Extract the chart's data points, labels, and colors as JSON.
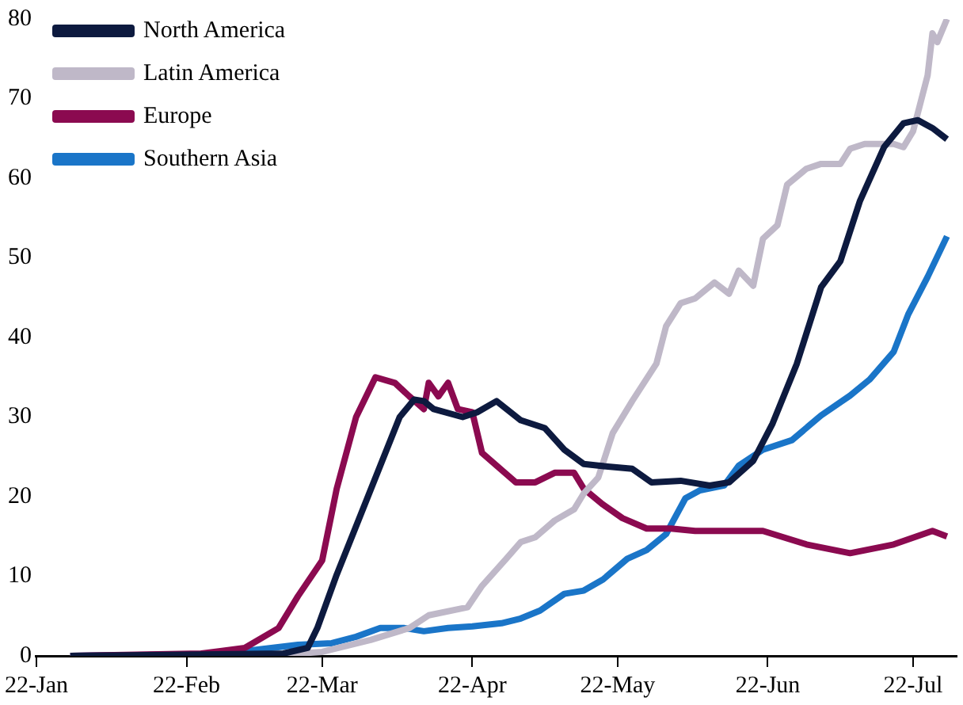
{
  "chart_data": {
    "type": "line",
    "legend": "top left",
    "grid": false,
    "marker": "none",
    "line_style": "solid",
    "xlim": [
      "--01-22",
      "--07-31"
    ],
    "xticks": [
      {
        "value": "--01-22",
        "label": "22-Jan"
      },
      {
        "value": "--02-22",
        "label": "22-Feb"
      },
      {
        "value": "--03-22",
        "label": "22-Mar"
      },
      {
        "value": "--04-22",
        "label": "22-Apr"
      },
      {
        "value": "--05-22",
        "label": "22-May"
      },
      {
        "value": "--06-22",
        "label": "22-Jun"
      },
      {
        "value": "--07-22",
        "label": "22-Jul"
      }
    ],
    "ylim": [
      0,
      80
    ],
    "yticks": [
      0,
      10,
      20,
      30,
      40,
      50,
      60,
      70,
      80
    ],
    "series": [
      {
        "name": "North America",
        "color": "#0d1a3f",
        "x": [
          "--01-29",
          "--03-14",
          "--03-19",
          "--03-21",
          "--03-25",
          "--03-30",
          "--04-03",
          "--04-07",
          "--04-10",
          "--04-12",
          "--04-14",
          "--04-20",
          "--04-23",
          "--04-27",
          "--05-02",
          "--05-07",
          "--05-11",
          "--05-15",
          "--05-18",
          "--05-25",
          "--05-29",
          "--06-04",
          "--06-10",
          "--06-14",
          "--06-19",
          "--06-23",
          "--06-28",
          "--07-03",
          "--07-07",
          "--07-11",
          "--07-16",
          "--07-20",
          "--07-23",
          "--07-26",
          "--07-29"
        ],
        "values": [
          0,
          0.3,
          1,
          3.5,
          10.2,
          17.8,
          23.9,
          30,
          32.2,
          32,
          31,
          30,
          30.6,
          32,
          29.6,
          28.6,
          25.9,
          24.1,
          23.9,
          23.5,
          21.8,
          22,
          21.4,
          21.8,
          24.5,
          29.2,
          36.7,
          46.3,
          49.6,
          57.1,
          63.9,
          66.9,
          67.3,
          66.3,
          64.9
        ]
      },
      {
        "name": "Latin America",
        "color": "#bfb8c8",
        "x": [
          "--01-29",
          "--03-10",
          "--03-22",
          "--04-01",
          "--04-09",
          "--04-13",
          "--04-21",
          "--04-24",
          "--04-29",
          "--05-02",
          "--05-05",
          "--05-09",
          "--05-13",
          "--05-15",
          "--05-18",
          "--05-21",
          "--05-25",
          "--05-30",
          "--06-01",
          "--06-04",
          "--06-07",
          "--06-11",
          "--06-14",
          "--06-16",
          "--06-19",
          "--06-21",
          "--06-24",
          "--06-26",
          "--06-30",
          "--07-03",
          "--07-07",
          "--07-09",
          "--07-12",
          "--07-18",
          "--07-20",
          "--07-22",
          "--07-25",
          "--07-26",
          "--07-27",
          "--07-29"
        ],
        "values": [
          0,
          0,
          0.5,
          2,
          3.5,
          5.1,
          6.1,
          8.8,
          12.2,
          14.3,
          14.9,
          17,
          18.4,
          20.4,
          22.4,
          28,
          32,
          36.7,
          41.4,
          44.3,
          44.9,
          46.9,
          45.5,
          48.4,
          46.5,
          52.4,
          54.1,
          59.2,
          61.2,
          61.8,
          61.8,
          63.7,
          64.3,
          64.3,
          63.9,
          65.9,
          72.9,
          78.2,
          77.1,
          80
        ]
      },
      {
        "name": "Europe",
        "color": "#8b0a50",
        "x": [
          "--01-29",
          "--02-25",
          "--03-01",
          "--03-06",
          "--03-13",
          "--03-17",
          "--03-22",
          "--03-25",
          "--03-29",
          "--04-02",
          "--04-06",
          "--04-09",
          "--04-12",
          "--04-13",
          "--04-15",
          "--04-17",
          "--04-19",
          "--04-22",
          "--04-24",
          "--04-27",
          "--05-01",
          "--05-05",
          "--05-09",
          "--05-13",
          "--05-15",
          "--05-19",
          "--05-23",
          "--05-28",
          "--06-02",
          "--06-07",
          "--06-21",
          "--06-30",
          "--07-09",
          "--07-18",
          "--07-26",
          "--07-29"
        ],
        "values": [
          0,
          0.3,
          0.6,
          1,
          3.5,
          7.5,
          12,
          21,
          30,
          35,
          34.3,
          32.6,
          31,
          34.3,
          32.6,
          34.3,
          31,
          30.6,
          25.5,
          23.9,
          21.8,
          21.8,
          23,
          23,
          21,
          19,
          17.3,
          16,
          16,
          15.7,
          15.7,
          14,
          12.9,
          14,
          15.7,
          15
        ]
      },
      {
        "name": "Southern Asia",
        "color": "#1a75c8",
        "x": [
          "--01-29",
          "--02-25",
          "--03-06",
          "--03-17",
          "--03-24",
          "--03-29",
          "--04-03",
          "--04-08",
          "--04-12",
          "--04-17",
          "--04-22",
          "--04-28",
          "--05-02",
          "--05-06",
          "--05-11",
          "--05-15",
          "--05-19",
          "--05-24",
          "--05-28",
          "--06-01",
          "--06-05",
          "--06-08",
          "--06-13",
          "--06-16",
          "--06-21",
          "--06-27",
          "--07-03",
          "--07-09",
          "--07-13",
          "--07-18",
          "--07-21",
          "--07-25",
          "--07-29"
        ],
        "values": [
          0,
          0.2,
          0.6,
          1.4,
          1.6,
          2.4,
          3.5,
          3.5,
          3.1,
          3.5,
          3.7,
          4.1,
          4.7,
          5.7,
          7.8,
          8.2,
          9.6,
          12.2,
          13.3,
          15.3,
          19.8,
          20.8,
          21.4,
          23.9,
          25.9,
          27.1,
          30.2,
          32.7,
          34.7,
          38.2,
          42.9,
          47.6,
          52.7
        ]
      }
    ]
  }
}
